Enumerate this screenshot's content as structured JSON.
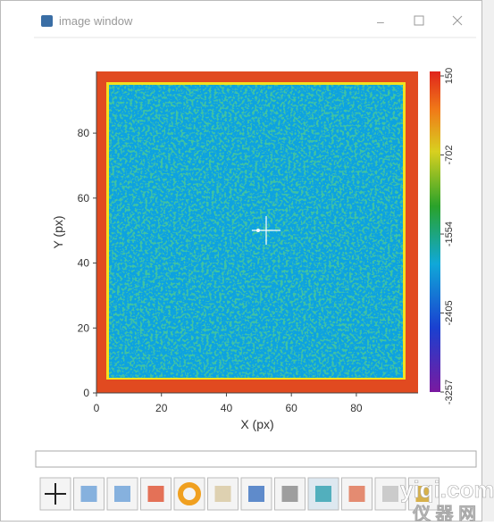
{
  "window": {
    "title": "image window"
  },
  "plot": {
    "xlabel": "X (px)",
    "ylabel": "Y (px)",
    "xlim": [
      0,
      99
    ],
    "xticks": [
      0,
      20,
      40,
      60,
      80
    ],
    "ylim": [
      0,
      99
    ],
    "yticks": [
      0,
      20,
      40,
      60,
      80
    ],
    "colorbar": {
      "lim": [
        -3257,
        150
      ],
      "ticks": [
        150,
        -702,
        -1554,
        -2405,
        -3257
      ]
    }
  },
  "watermark": {
    "site": "yiqi.com",
    "name": "仪 器 网"
  }
}
